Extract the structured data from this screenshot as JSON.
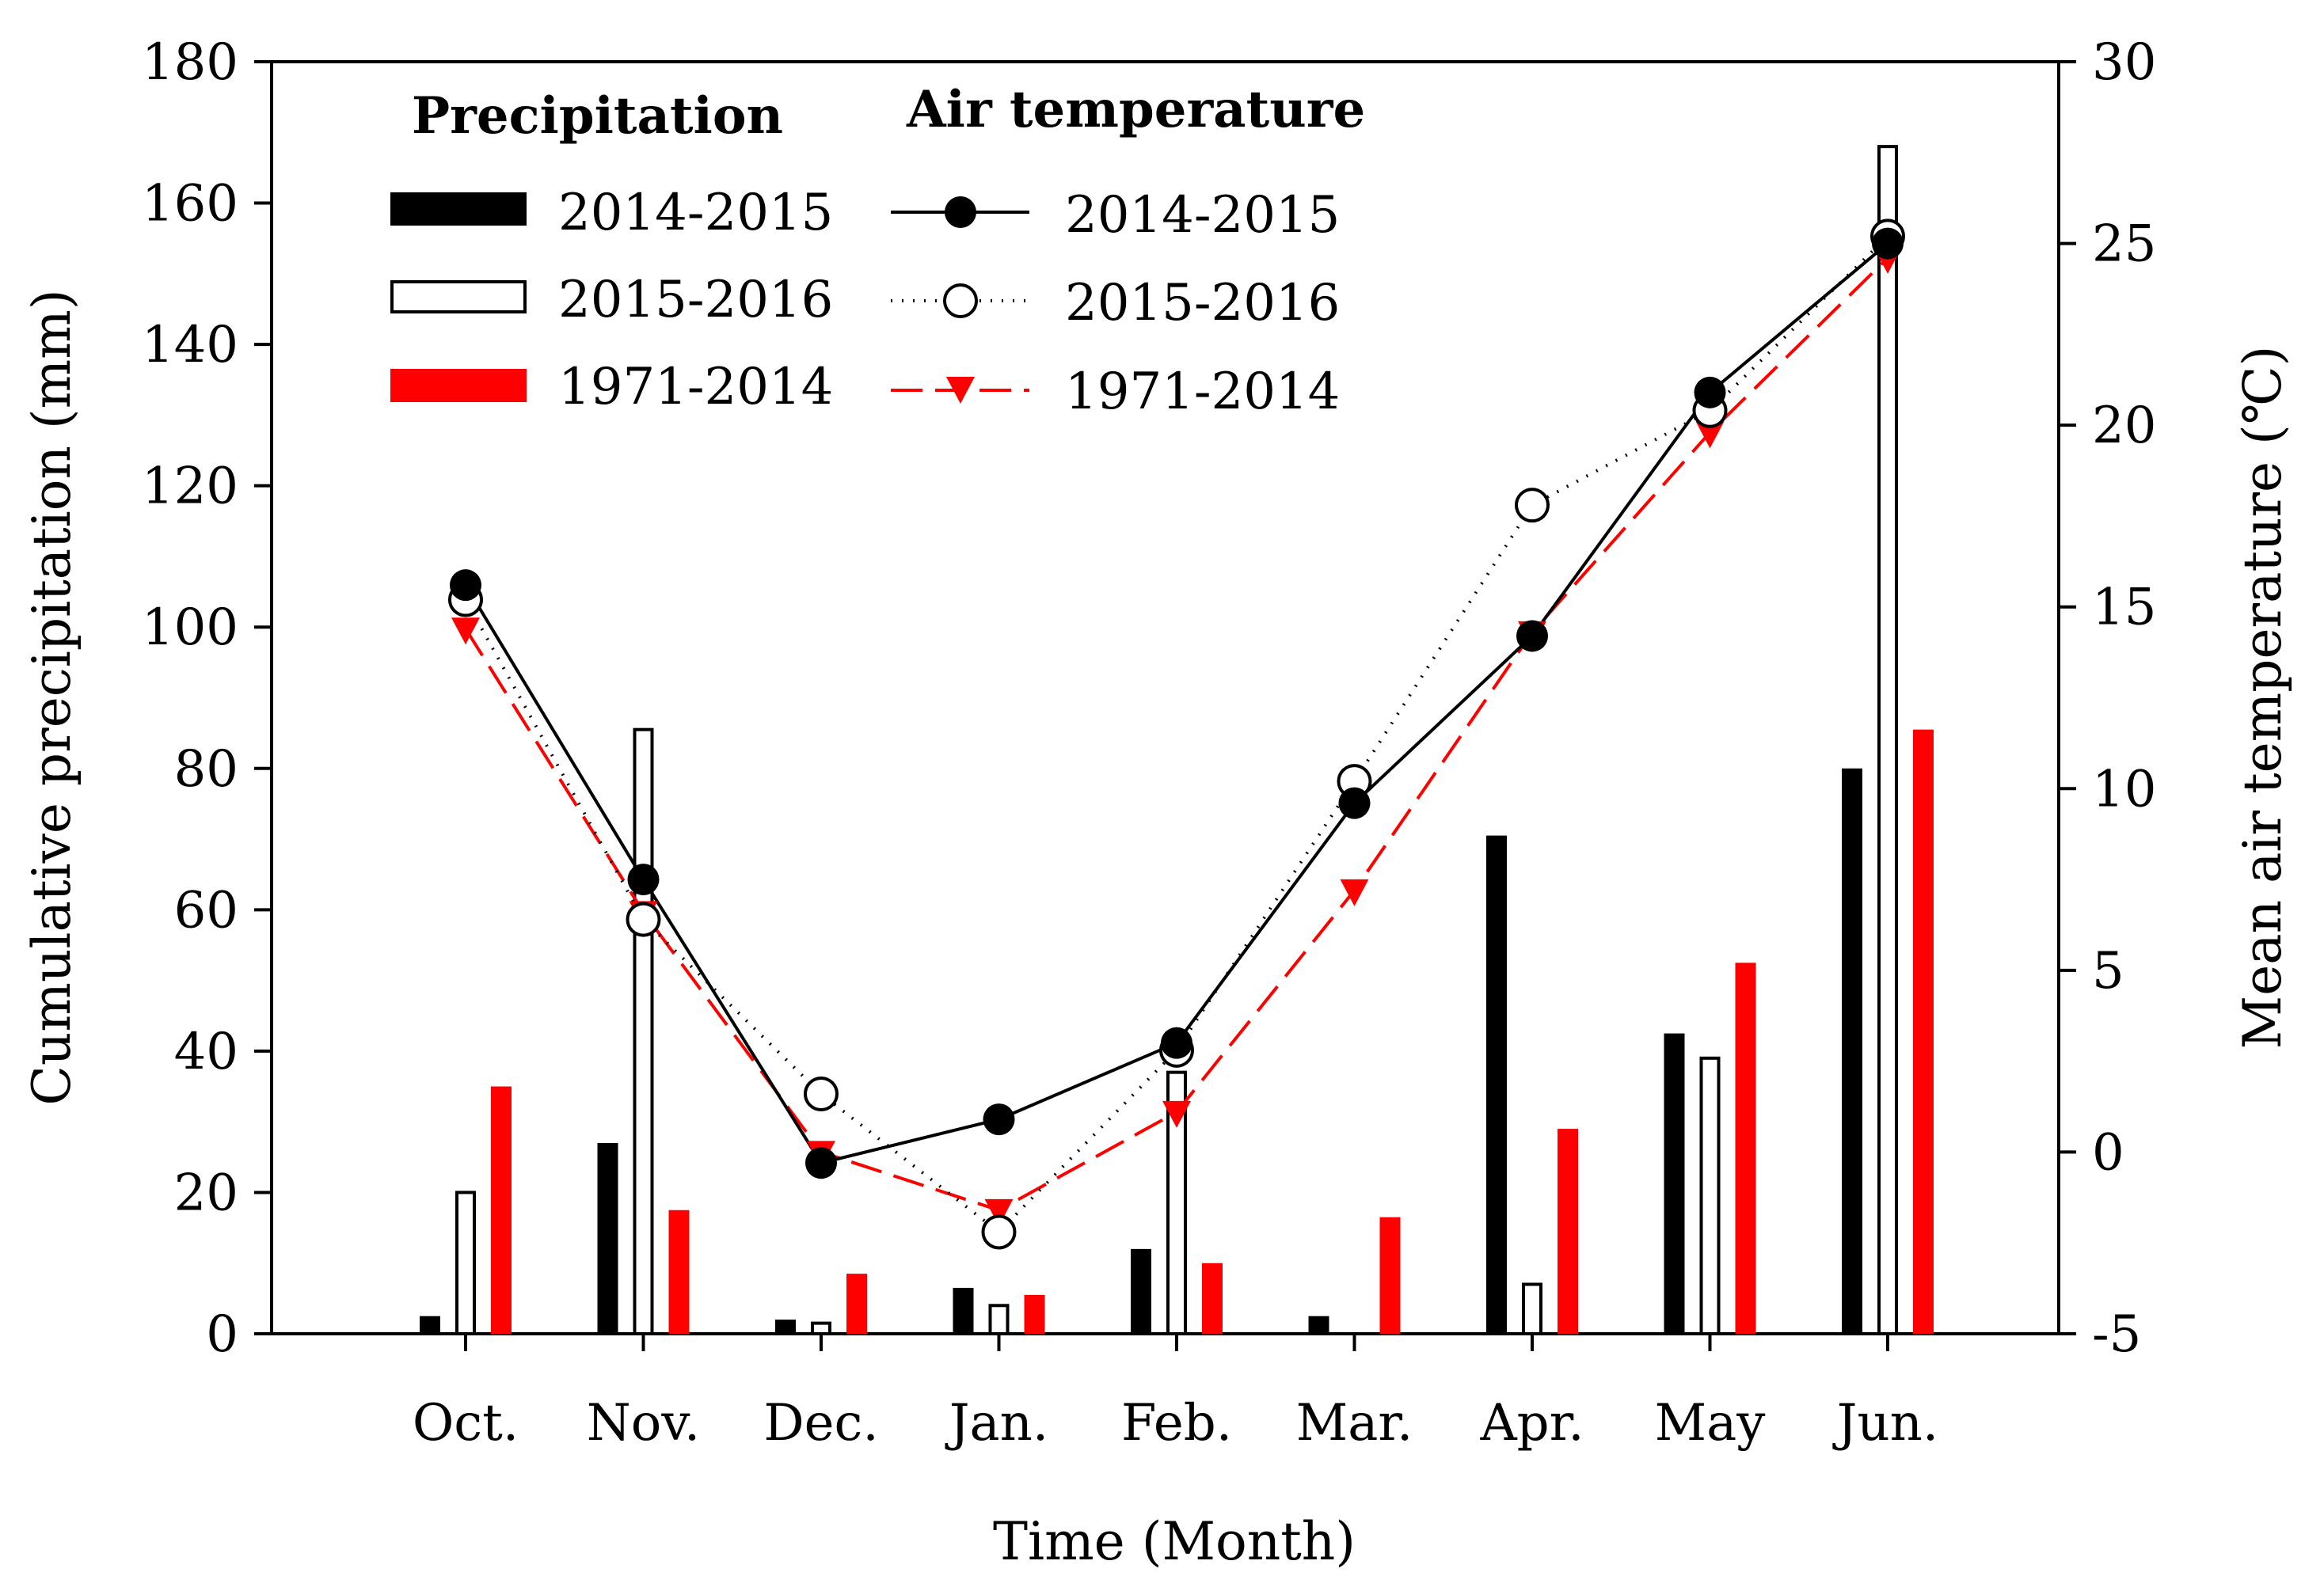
{
  "chart_data": {
    "type": "bar+line",
    "categories": [
      "Oct.",
      "Nov.",
      "Dec.",
      "Jan.",
      "Feb.",
      "Mar.",
      "Apr.",
      "May",
      "Jun."
    ],
    "xlabel": "Time (Month)",
    "ylabel_left": "Cumulative precipitation (mm)",
    "ylabel_right": "Mean air temperature (℃)",
    "ylim_left": [
      0,
      180
    ],
    "yticks_left": [
      0,
      20,
      40,
      60,
      80,
      100,
      120,
      140,
      160,
      180
    ],
    "ylim_right": [
      -5,
      30
    ],
    "yticks_right": [
      -5,
      0,
      5,
      10,
      15,
      20,
      25,
      30
    ],
    "bar_series": [
      {
        "name": "2014-2015",
        "color": "#000000",
        "fill": "solid",
        "values": [
          2.5,
          27,
          2,
          6.5,
          12,
          2.5,
          70.5,
          42.5,
          80
        ]
      },
      {
        "name": "2015-2016",
        "color": "#000000",
        "fill": "hollow",
        "values": [
          20,
          85.5,
          1.5,
          4,
          37,
          0,
          7,
          39,
          168
        ]
      },
      {
        "name": "1971-2014",
        "color": "#ff0000",
        "fill": "solid",
        "values": [
          35,
          17.5,
          8.5,
          5.5,
          10,
          16.5,
          29,
          52.5,
          85.5
        ]
      }
    ],
    "line_series": [
      {
        "name": "2014-2015",
        "color": "#000000",
        "style": "solid",
        "marker": "filled-circle",
        "values": [
          15.6,
          7.5,
          -0.3,
          0.9,
          3.0,
          9.6,
          14.2,
          20.9,
          25.0
        ]
      },
      {
        "name": "2015-2016",
        "color": "#000000",
        "style": "dotted",
        "marker": "open-circle",
        "values": [
          15.2,
          6.4,
          1.6,
          -2.2,
          2.8,
          10.2,
          17.8,
          20.4,
          25.2
        ]
      },
      {
        "name": "1971-2014",
        "color": "#ff0000",
        "style": "dashed",
        "marker": "down-triangle",
        "values": [
          14.4,
          6.6,
          0.0,
          -1.6,
          1.1,
          7.2,
          14.3,
          19.8,
          24.6
        ]
      }
    ],
    "legend": {
      "precip_title": "Precipitation",
      "temp_title": "Air temperature",
      "precip_labels": [
        "2014-2015",
        "2015-2016",
        "1971-2014"
      ],
      "temp_labels": [
        "2014-2015",
        "2015-2016",
        "1971-2014"
      ]
    }
  }
}
